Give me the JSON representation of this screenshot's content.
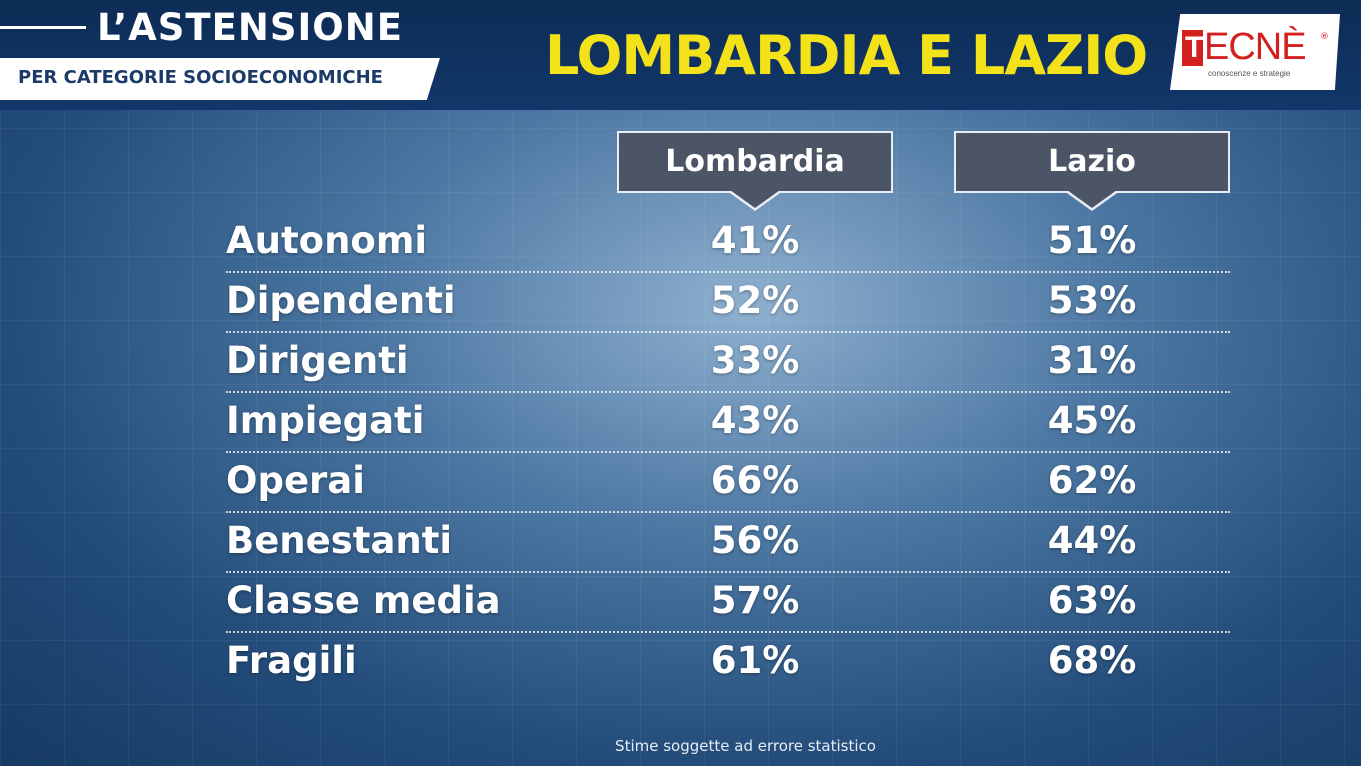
{
  "header": {
    "title": "L’ASTENSIONE",
    "subtitle": "PER CATEGORIE SOCIOECONOMICHE",
    "region_title": "LOMBARDIA E LAZIO",
    "logo": {
      "text": "TECNÈ",
      "tagline": "conoscenze e strategie"
    }
  },
  "colors": {
    "title_yellow": "#f3e21a",
    "header_bg": "#12376a",
    "logo_red": "#d41f1f"
  },
  "chart_data": {
    "type": "table",
    "title": "L’ASTENSIONE — LOMBARDIA E LAZIO",
    "subtitle": "PER CATEGORIE SOCIOECONOMICHE",
    "columns": [
      "Lombardia",
      "Lazio"
    ],
    "categories": [
      "Autonomi",
      "Dipendenti",
      "Dirigenti",
      "Impiegati",
      "Operai",
      "Benestanti",
      "Classe media",
      "Fragili"
    ],
    "series": [
      {
        "name": "Lombardia",
        "values": [
          41,
          52,
          33,
          43,
          66,
          56,
          57,
          61
        ],
        "labels": [
          "41%",
          "52%",
          "33%",
          "43%",
          "66%",
          "56%",
          "57%",
          "61%"
        ]
      },
      {
        "name": "Lazio",
        "values": [
          51,
          53,
          31,
          45,
          62,
          44,
          63,
          68
        ],
        "labels": [
          "51%",
          "53%",
          "31%",
          "45%",
          "62%",
          "44%",
          "63%",
          "68%"
        ]
      }
    ],
    "unit": "%"
  },
  "footnote": "Stime soggette ad errore statistico"
}
